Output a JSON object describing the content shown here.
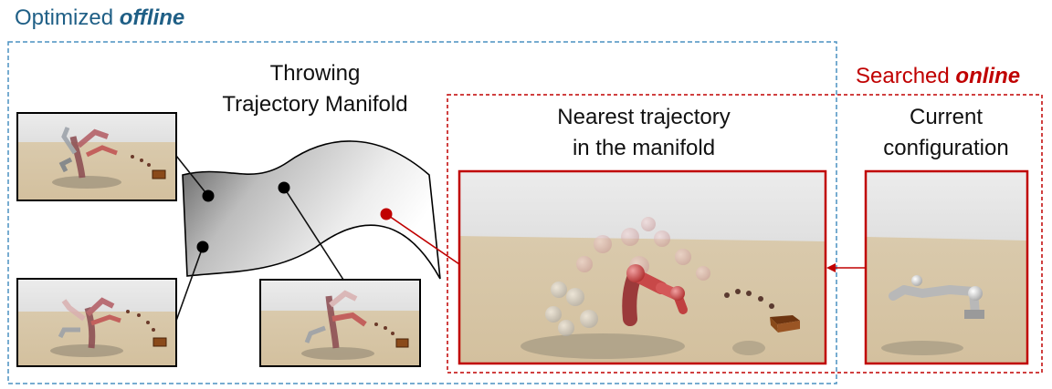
{
  "colors": {
    "offline_blue": "#1f5f86",
    "online_red": "#c00000",
    "sky": "#e6e6e6",
    "floor": "#d8c7a8"
  },
  "offline": {
    "prefix": "Optimized ",
    "emphasis": "offline"
  },
  "online": {
    "prefix": "Searched ",
    "emphasis": "online"
  },
  "manifold": {
    "line1": "Throwing",
    "line2": "Trajectory Manifold"
  },
  "nearest": {
    "line1": "Nearest trajectory",
    "line2": "in the manifold"
  },
  "current": {
    "line1": "Current",
    "line2": "configuration"
  }
}
